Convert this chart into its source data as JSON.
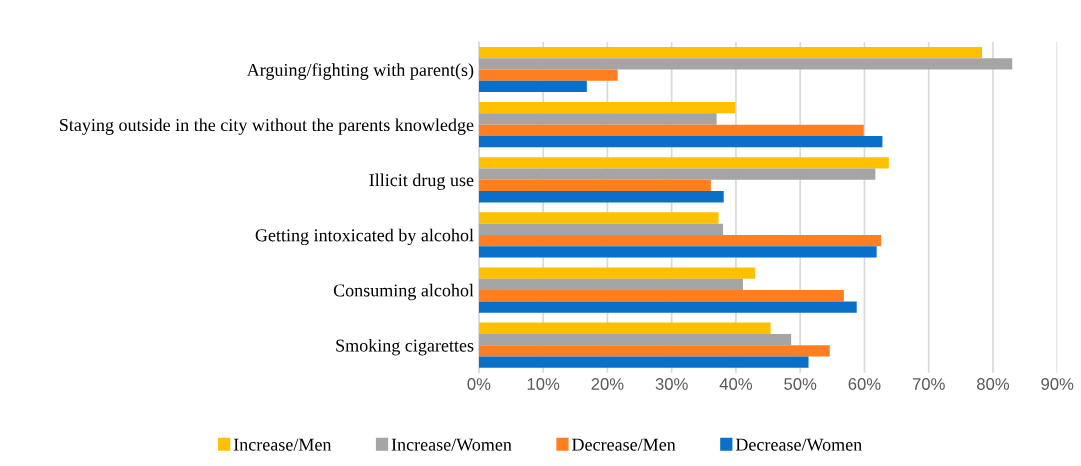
{
  "chart_data": {
    "type": "bar",
    "orientation": "horizontal",
    "categories": [
      "Arguing/fighting with parent(s)",
      "Staying outside in the city without the parents knowledge",
      "Illicit drug use",
      "Getting intoxicated by alcohol",
      "Consuming alcohol",
      "Smoking cigarettes"
    ],
    "series": [
      {
        "name": "Increase/Men",
        "color": "#ffc000",
        "values": [
          78.3,
          39.9,
          63.8,
          37.3,
          43.0,
          45.4
        ]
      },
      {
        "name": "Increase/Women",
        "color": "#a5a5a5",
        "values": [
          83.0,
          37.0,
          61.7,
          38.0,
          41.1,
          48.6
        ]
      },
      {
        "name": "Decrease/Men",
        "color": "#ff7f20",
        "values": [
          21.6,
          59.9,
          36.1,
          62.6,
          56.8,
          54.6
        ]
      },
      {
        "name": "Decrease/Women",
        "color": "#0870c8",
        "values": [
          16.8,
          62.8,
          38.1,
          61.9,
          58.8,
          51.3
        ]
      }
    ],
    "xlim": [
      0,
      90
    ],
    "xticks": [
      {
        "value": 0,
        "label": "0%"
      },
      {
        "value": 10,
        "label": "10%"
      },
      {
        "value": 20,
        "label": "20%"
      },
      {
        "value": 30,
        "label": "30%"
      },
      {
        "value": 40,
        "label": "40%"
      },
      {
        "value": 50,
        "label": "50%"
      },
      {
        "value": 60,
        "label": "60%"
      },
      {
        "value": 70,
        "label": "70%"
      },
      {
        "value": 80,
        "label": "80%"
      },
      {
        "value": 90,
        "label": "90%"
      }
    ],
    "grid": "x",
    "legend": "bottom"
  }
}
